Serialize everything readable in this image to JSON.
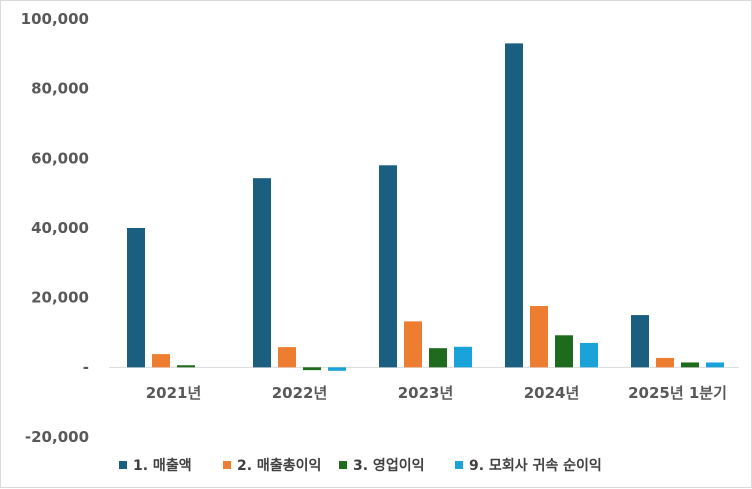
{
  "chart_data": {
    "type": "bar",
    "categories": [
      "2021년",
      "2022년",
      "2023년",
      "2024년",
      "2025년 1분기"
    ],
    "series": [
      {
        "name": "1. 매출액",
        "color": "#1a5e80",
        "values": [
          40000,
          54300,
          58000,
          93000,
          15000
        ]
      },
      {
        "name": "2. 매출총이익",
        "color": "#ed7d31",
        "values": [
          3800,
          5800,
          13200,
          17600,
          2700
        ]
      },
      {
        "name": "3. 영업이익",
        "color": "#1e6b1e",
        "values": [
          600,
          -800,
          5500,
          9200,
          1400
        ]
      },
      {
        "name": "9. 모회사 귀속 순이익",
        "color": "#1aa3d9",
        "values": [
          0,
          -1000,
          5900,
          7000,
          1400
        ]
      }
    ],
    "y_ticks": [
      {
        "value": 100000,
        "label": "100,000"
      },
      {
        "value": 80000,
        "label": "80,000"
      },
      {
        "value": 60000,
        "label": "60,000"
      },
      {
        "value": 40000,
        "label": "40,000"
      },
      {
        "value": 20000,
        "label": "20,000"
      },
      {
        "value": 0,
        "label": "-"
      },
      {
        "value": -20000,
        "label": "-20,000"
      }
    ],
    "ylim": [
      -20000,
      100000
    ],
    "grid": false,
    "legend_position": "bottom"
  }
}
